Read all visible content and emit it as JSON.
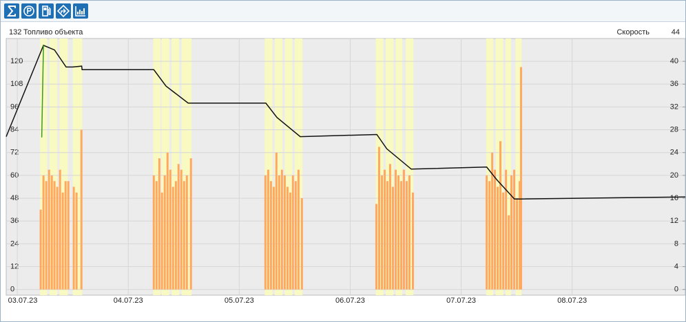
{
  "chart_data": {
    "type": "line",
    "xlim": [
      -0.1,
      6.02
    ],
    "xticks": [
      {
        "value": 0,
        "label": "03.07.23"
      },
      {
        "value": 1,
        "label": "04.07.23"
      },
      {
        "value": 2,
        "label": "05.07.23"
      },
      {
        "value": 3,
        "label": "06.07.23"
      },
      {
        "value": 4,
        "label": "07.07.23"
      },
      {
        "value": 5,
        "label": "08.07.23"
      }
    ],
    "ylim": [
      -3,
      132
    ],
    "yticks": [
      0,
      12,
      24,
      36,
      48,
      60,
      72,
      84,
      96,
      108,
      120
    ],
    "y2lim": [
      -1,
      44
    ],
    "y2ticks": [
      0,
      4,
      8,
      12,
      16,
      20,
      24,
      28,
      32,
      36,
      40
    ],
    "grid": true,
    "highlight_color": "#f9f9c2",
    "highlight_bands": [
      [
        0.205,
        0.27
      ],
      [
        0.29,
        0.36
      ],
      [
        0.38,
        0.455
      ],
      [
        0.5,
        0.585
      ],
      [
        1.225,
        1.29
      ],
      [
        1.3,
        1.37
      ],
      [
        1.39,
        1.46
      ],
      [
        1.48,
        1.57
      ],
      [
        2.23,
        2.3
      ],
      [
        2.32,
        2.39
      ],
      [
        2.41,
        2.48
      ],
      [
        2.5,
        2.57
      ],
      [
        3.23,
        3.3
      ],
      [
        3.32,
        3.39
      ],
      [
        3.41,
        3.47
      ],
      [
        3.5,
        3.57
      ],
      [
        4.225,
        4.29
      ],
      [
        4.31,
        4.38
      ],
      [
        4.4,
        4.45
      ],
      [
        4.49,
        4.545
      ]
    ],
    "series": [
      {
        "name": "Топливо объекта",
        "color": "#111111",
        "x": [
          -0.1,
          0.236,
          0.335,
          0.44,
          0.5,
          0.58,
          0.584,
          1.23,
          1.34,
          1.54,
          2.24,
          2.34,
          2.55,
          3.24,
          3.33,
          3.55,
          4.23,
          4.32,
          4.48,
          4.54,
          6.02
        ],
        "values": [
          80.4,
          128.4,
          126,
          117,
          117,
          117.5,
          115.6,
          115.6,
          107,
          98,
          98,
          90.5,
          80.4,
          81.5,
          74,
          63.3,
          64.4,
          57.8,
          47.6,
          47.6,
          48.7
        ]
      },
      {
        "color": "#3a9a2a",
        "x": [
          0.22,
          0.236
        ],
        "values": [
          80,
          128.4
        ]
      },
      {
        "name": "Скорость",
        "color": "#ffa860",
        "type": "bar",
        "axis": "y2",
        "x": [
          0.211,
          0.236,
          0.261,
          0.286,
          0.311,
          0.335,
          0.36,
          0.385,
          0.41,
          0.435,
          0.46,
          0.509,
          0.534,
          0.578,
          1.23,
          1.255,
          1.28,
          1.304,
          1.329,
          1.354,
          1.379,
          1.404,
          1.429,
          1.453,
          1.478,
          1.503,
          1.528,
          1.565,
          2.236,
          2.261,
          2.286,
          2.311,
          2.335,
          2.36,
          2.385,
          2.41,
          2.435,
          2.46,
          2.484,
          2.509,
          2.534,
          2.565,
          3.236,
          3.261,
          3.286,
          3.311,
          3.335,
          3.36,
          3.385,
          3.41,
          3.435,
          3.46,
          3.484,
          3.509,
          3.534,
          3.565,
          4.23,
          4.255,
          4.28,
          4.304,
          4.329,
          4.354,
          4.379,
          4.404,
          4.429,
          4.453,
          4.478,
          4.503,
          4.528,
          4.54
        ],
        "values": [
          14,
          20,
          19,
          21,
          20,
          19,
          18,
          21,
          17,
          19,
          19,
          18,
          17,
          28,
          20,
          19,
          23,
          17,
          20,
          24,
          21,
          18,
          19,
          22,
          21,
          19,
          20,
          23,
          20,
          21,
          19,
          18,
          24,
          20,
          21,
          20,
          18,
          17,
          20,
          19,
          21,
          16,
          15,
          25,
          20,
          21,
          19,
          22,
          18,
          21,
          20,
          19,
          21,
          19,
          20,
          17,
          20,
          19,
          24,
          21,
          18,
          26,
          17,
          21,
          13,
          20,
          21,
          16,
          19,
          39
        ]
      }
    ]
  }
}
